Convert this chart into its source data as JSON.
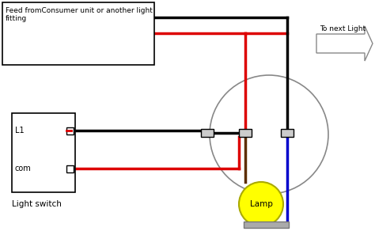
{
  "bg_color": "#ffffff",
  "feed_label": "Feed fromConsumer unit or another light\nfitting",
  "next_light_label": "To next Light",
  "switch_label": "Light switch",
  "lamp_label": "Lamp",
  "l1_label": "L1",
  "com_label": "com",
  "figsize": [
    4.74,
    3.16
  ],
  "dpi": 100,
  "black": "#000000",
  "red": "#dd0000",
  "blue": "#0000cc",
  "brown": "#5C2E00",
  "gray_wire": "#888888",
  "circle_color": "#888888",
  "lamp_face": "#ffff00",
  "lamp_edge": "#aaaa00",
  "conn_face": "#cccccc",
  "arrow_edge": "#888888"
}
